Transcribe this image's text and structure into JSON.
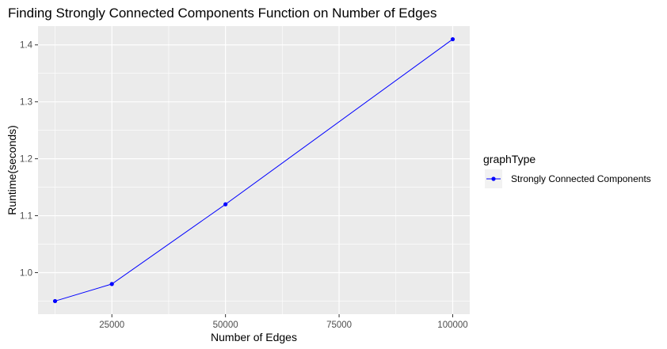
{
  "chart_data": {
    "type": "line",
    "title": "Finding Strongly Connected Components Function on Number of Edges",
    "xlabel": "Number of Edges",
    "ylabel": "Runtime(seconds)",
    "x": [
      12500,
      25000,
      50000,
      100000
    ],
    "series": [
      {
        "name": "Strongly Connected Components",
        "values": [
          0.95,
          0.98,
          1.12,
          1.41
        ],
        "color": "#0000ff"
      }
    ],
    "xlim": [
      8750,
      103750
    ],
    "ylim": [
      0.927,
      1.433
    ],
    "x_ticks": [
      25000,
      50000,
      75000,
      100000
    ],
    "x_tick_labels": [
      "25000",
      "50000",
      "75000",
      "100000"
    ],
    "y_ticks": [
      1.0,
      1.1,
      1.2,
      1.3,
      1.4
    ],
    "y_tick_labels": [
      "1.0",
      "1.1",
      "1.2",
      "1.3",
      "1.4"
    ],
    "grid": true,
    "legend": {
      "title": "graphType",
      "placement": "right"
    },
    "panel_background": "#ebebeb",
    "grid_color": "#ffffff"
  }
}
